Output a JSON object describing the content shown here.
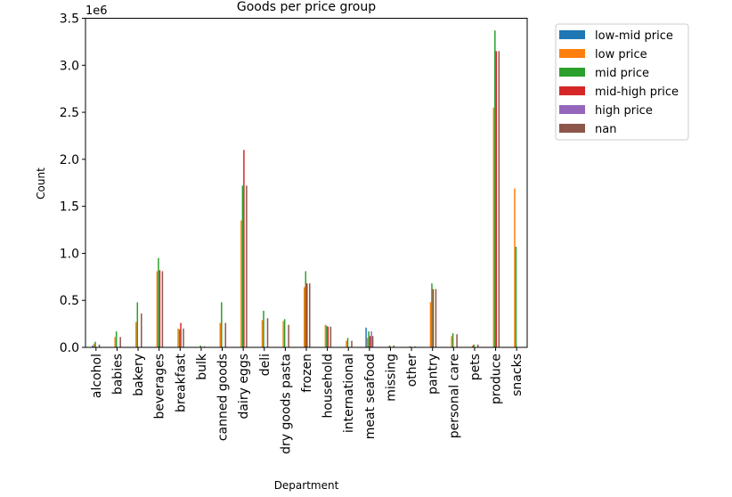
{
  "chart_data": {
    "type": "bar",
    "title": "Goods per price group",
    "xlabel": "Department",
    "ylabel": "Count",
    "y_offset_label": "1e6",
    "ylim": [
      0,
      3.5
    ],
    "yticks": [
      0.0,
      0.5,
      1.0,
      1.5,
      2.0,
      2.5,
      3.0,
      3.5
    ],
    "ytick_labels": [
      "0.0",
      "0.5",
      "1.0",
      "1.5",
      "2.0",
      "2.5",
      "3.0",
      "3.5"
    ],
    "units_note": "values in millions (1e6)",
    "legend_position": "outside-top-right",
    "categories": [
      "alcohol",
      "babies",
      "bakery",
      "beverages",
      "breakfast",
      "bulk",
      "canned goods",
      "dairy eggs",
      "deli",
      "dry goods pasta",
      "frozen",
      "household",
      "international",
      "meat seafood",
      "missing",
      "other",
      "pantry",
      "personal care",
      "pets",
      "produce",
      "snacks"
    ],
    "series": [
      {
        "name": "low-mid price",
        "color": "#1f77b4",
        "values": [
          0.02,
          0.0,
          0.0,
          0.0,
          0.0,
          0.0,
          0.0,
          0.0,
          0.0,
          0.0,
          0.0,
          0.0,
          0.0,
          0.21,
          0.0,
          0.0,
          0.0,
          0.0,
          0.0,
          0.0,
          0.0
        ]
      },
      {
        "name": "low price",
        "color": "#ff7f0e",
        "values": [
          0.04,
          0.11,
          0.27,
          0.81,
          0.2,
          0.0,
          0.26,
          1.35,
          0.29,
          0.28,
          0.64,
          0.24,
          0.07,
          0.1,
          0.01,
          0.01,
          0.48,
          0.12,
          0.02,
          2.55,
          1.69
        ]
      },
      {
        "name": "mid price",
        "color": "#2ca02c",
        "values": [
          0.06,
          0.17,
          0.48,
          0.95,
          0.19,
          0.02,
          0.48,
          1.72,
          0.39,
          0.3,
          0.81,
          0.23,
          0.1,
          0.17,
          0.02,
          0.01,
          0.68,
          0.15,
          0.03,
          3.37,
          1.07
        ]
      },
      {
        "name": "mid-high price",
        "color": "#d62728",
        "values": [
          0.0,
          0.0,
          0.0,
          0.82,
          0.26,
          0.0,
          0.0,
          2.1,
          0.0,
          0.0,
          0.68,
          0.22,
          0.0,
          0.12,
          0.0,
          0.0,
          0.62,
          0.0,
          0.0,
          3.15,
          0.0
        ]
      },
      {
        "name": "high price",
        "color": "#9467bd",
        "values": [
          0.0,
          0.0,
          0.0,
          0.0,
          0.0,
          0.0,
          0.0,
          0.0,
          0.0,
          0.0,
          0.0,
          0.0,
          0.0,
          0.17,
          0.0,
          0.0,
          0.0,
          0.0,
          0.0,
          0.0,
          0.0
        ]
      },
      {
        "name": "nan",
        "color": "#8c564b",
        "values": [
          0.03,
          0.11,
          0.36,
          0.81,
          0.2,
          0.01,
          0.26,
          1.72,
          0.31,
          0.24,
          0.68,
          0.22,
          0.07,
          0.12,
          0.02,
          0.01,
          0.62,
          0.14,
          0.03,
          3.15,
          0.0
        ]
      }
    ]
  }
}
